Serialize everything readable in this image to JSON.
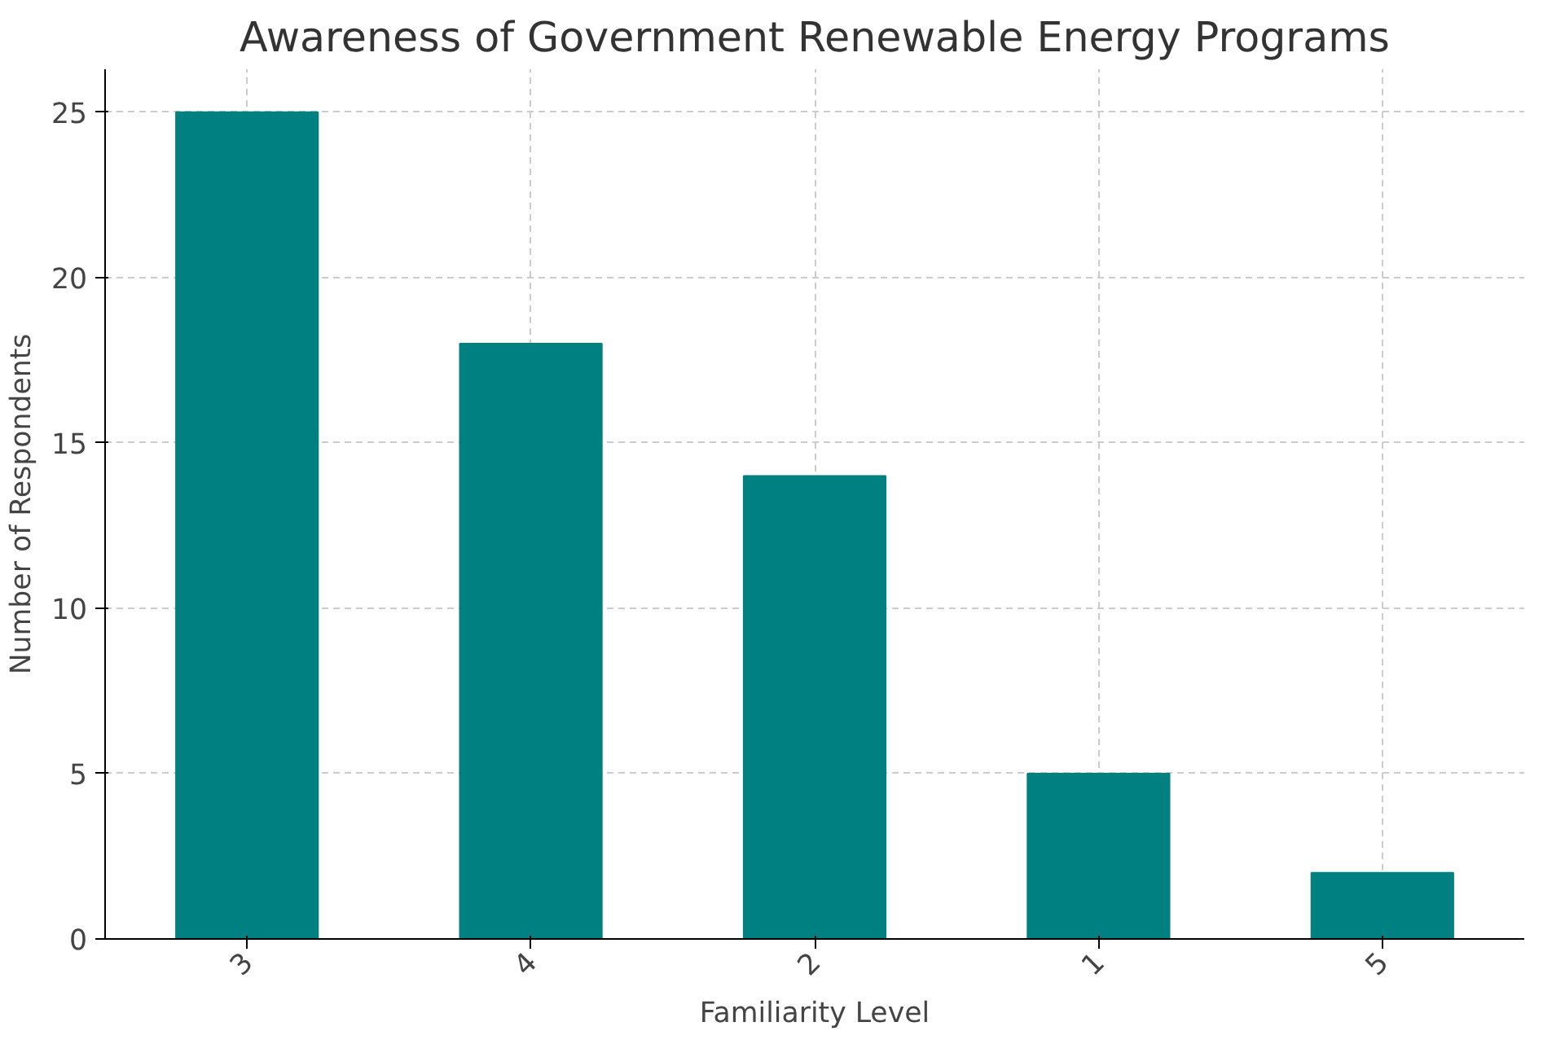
{
  "chart_data": {
    "type": "bar",
    "title": "Awareness of Government Renewable Energy Programs",
    "xlabel": "Familiarity Level",
    "ylabel": "Number of Respondents",
    "categories": [
      "3",
      "4",
      "2",
      "1",
      "5"
    ],
    "values": [
      25,
      18,
      14,
      5,
      2
    ],
    "color": "#008080",
    "ylim": [
      0,
      26.3
    ],
    "yticks": [
      0,
      5,
      10,
      15,
      20,
      25
    ],
    "grid": true
  }
}
